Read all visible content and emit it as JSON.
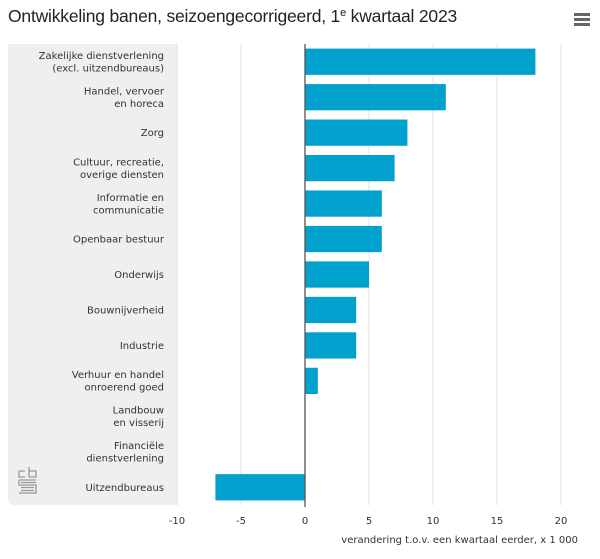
{
  "header": {
    "title_main": "Ontwikkeling banen, seizoengecorrigeerd, 1",
    "title_sup": "e",
    "title_rest": " kwartaal 2023",
    "menu_icon": "hamburger-menu-icon"
  },
  "logo": {
    "icon": "cbs-logo-icon"
  },
  "colors": {
    "bar": "#00A1CD",
    "grid": "#e2e2e2",
    "zero_axis": "#555555",
    "label_panel": "#efefef"
  },
  "chart_data": {
    "type": "bar",
    "orientation": "horizontal",
    "title": "Ontwikkeling banen, seizoengecorrigeerd, 1e kwartaal 2023",
    "xlabel": "verandering t.o.v. een kwartaal eerder, x 1 000",
    "ylabel": "",
    "xlim": [
      -10,
      20
    ],
    "xticks": [
      -10,
      -5,
      0,
      5,
      10,
      15,
      20
    ],
    "grid": true,
    "legend": "none",
    "categories": [
      [
        "Zakelijke dienstverlening",
        "(excl. uitzendbureaus)"
      ],
      [
        "Handel, vervoer",
        "en horeca"
      ],
      [
        "Zorg"
      ],
      [
        "Cultuur, recreatie,",
        "overige diensten"
      ],
      [
        "Informatie en",
        "communicatie"
      ],
      [
        "Openbaar bestuur"
      ],
      [
        "Onderwijs"
      ],
      [
        "Bouwnijverheid"
      ],
      [
        "Industrie"
      ],
      [
        "Verhuur en handel",
        "onroerend goed"
      ],
      [
        "Landbouw",
        "en visserij"
      ],
      [
        "Financiële",
        "dienstverlening"
      ],
      [
        "Uitzendbureaus"
      ]
    ],
    "values": [
      18,
      11,
      8,
      7,
      6,
      6,
      5,
      4,
      4,
      1,
      0,
      0,
      -7
    ]
  }
}
